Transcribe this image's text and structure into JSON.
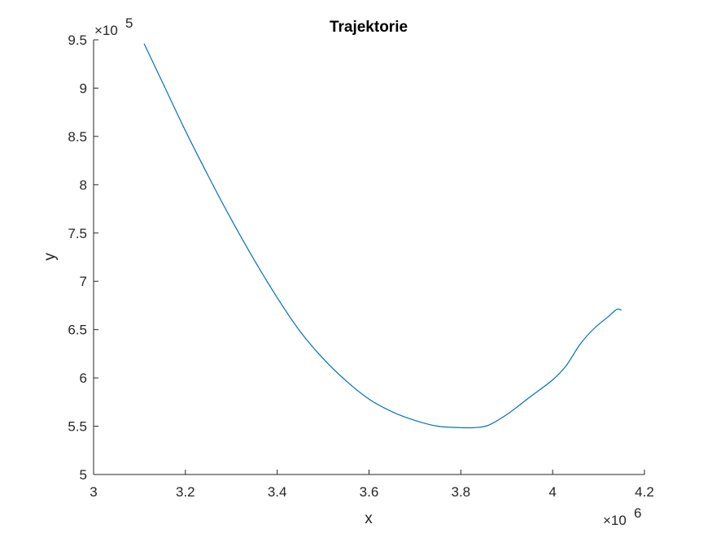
{
  "chart_data": {
    "type": "line",
    "title": "Trajektorie",
    "xlabel": "x",
    "ylabel": "y",
    "xlim": [
      3000000,
      4200000
    ],
    "ylim": [
      500000,
      950000
    ],
    "x_ticks": [
      3000000,
      3200000,
      3400000,
      3600000,
      3800000,
      4000000,
      4200000
    ],
    "x_tick_labels": [
      "3",
      "3.2",
      "3.4",
      "3.6",
      "3.8",
      "4",
      "4.2"
    ],
    "y_ticks": [
      500000,
      550000,
      600000,
      650000,
      700000,
      750000,
      800000,
      850000,
      900000,
      950000
    ],
    "y_tick_labels": [
      "5",
      "5.5",
      "6",
      "6.5",
      "7",
      "7.5",
      "8",
      "8.5",
      "9",
      "9.5"
    ],
    "x_exponent": {
      "base": "×10",
      "power": "6"
    },
    "y_exponent": {
      "base": "×10",
      "power": "5"
    },
    "grid": false,
    "line_color": "#0072BD",
    "series": [
      {
        "x": [
          3110000,
          3150000,
          3200000,
          3250000,
          3300000,
          3350000,
          3400000,
          3450000,
          3500000,
          3550000,
          3600000,
          3650000,
          3700000,
          3750000,
          3800000,
          3830000,
          3860000,
          3900000,
          3950000,
          4000000,
          4030000,
          4060000,
          4090000,
          4120000,
          4140000,
          4150000
        ],
        "y": [
          946000,
          906000,
          856000,
          809000,
          764000,
          722000,
          683000,
          648000,
          620000,
          597000,
          578000,
          565000,
          556000,
          550000,
          548500,
          548500,
          551000,
          562000,
          580000,
          598000,
          613000,
          635000,
          651000,
          663000,
          671000,
          670000
        ]
      }
    ]
  }
}
